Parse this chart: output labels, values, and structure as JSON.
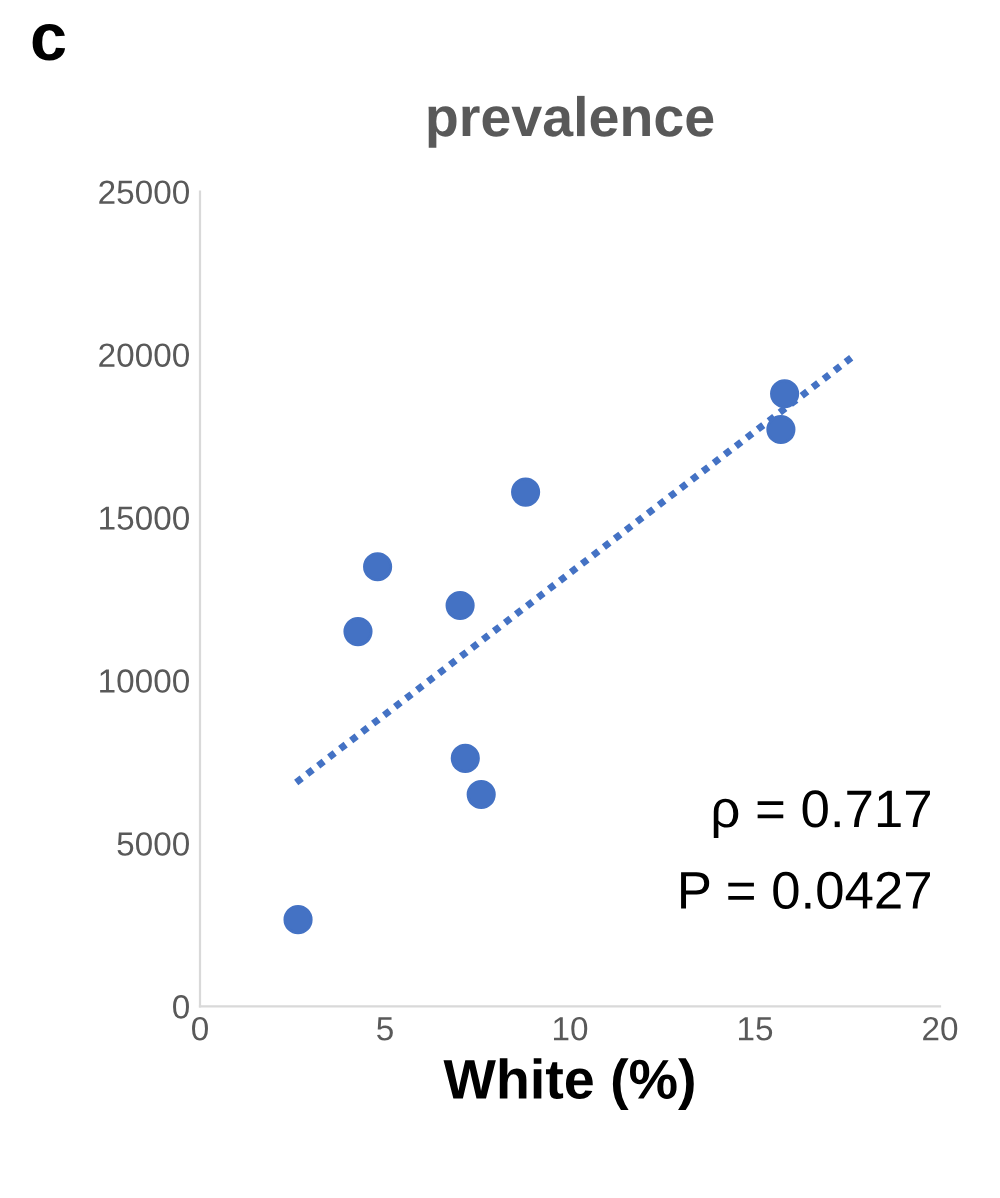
{
  "chart_data": {
    "type": "scatter",
    "title": "prevalence",
    "xlabel": "White (%)",
    "series": [
      {
        "marker": "circle",
        "color": "#4472c4",
        "x": [
          2.65,
          4.27,
          4.8,
          7.03,
          7.17,
          7.6,
          8.8,
          15.7,
          15.8
        ],
        "values": [
          2660,
          11500,
          13490,
          12300,
          7610,
          6500,
          15780,
          17700,
          18800
        ]
      },
      {
        "type": "line",
        "color": "#4472c4",
        "line_style": "dotted",
        "x": [
          2.6,
          17.6
        ],
        "values": [
          6870,
          19900
        ]
      }
    ],
    "xlim": [
      0,
      20
    ],
    "xticks": [
      0,
      5,
      10,
      15,
      20
    ],
    "ylim": [
      0,
      25000
    ],
    "yticks": [
      0,
      5000,
      10000,
      15000,
      20000,
      25000
    ],
    "grid": false,
    "annotations": [
      "c",
      "ρ = 0.717",
      "P = 0.0427"
    ]
  }
}
